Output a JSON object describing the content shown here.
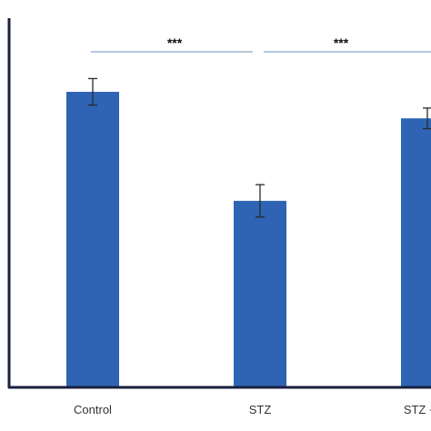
{
  "chart_data": {
    "type": "bar",
    "title": "",
    "xlabel": "",
    "ylabel": "",
    "categories": [
      "Control",
      "STZ",
      "STZ + lid"
    ],
    "values": [
      100,
      63,
      91
    ],
    "errors": [
      4.5,
      5.5,
      3.5
    ],
    "ylim": [
      0,
      125
    ],
    "grid": false,
    "colors": {
      "bar": "#2e64b3",
      "axis": "#1a2040",
      "error_bar": "#2a2a2a",
      "significance_line": "#88a6c6"
    },
    "significance": [
      {
        "from": "Control",
        "to": "STZ",
        "label": "***"
      },
      {
        "from": "STZ",
        "to": "STZ + lid",
        "label": "***"
      }
    ]
  }
}
